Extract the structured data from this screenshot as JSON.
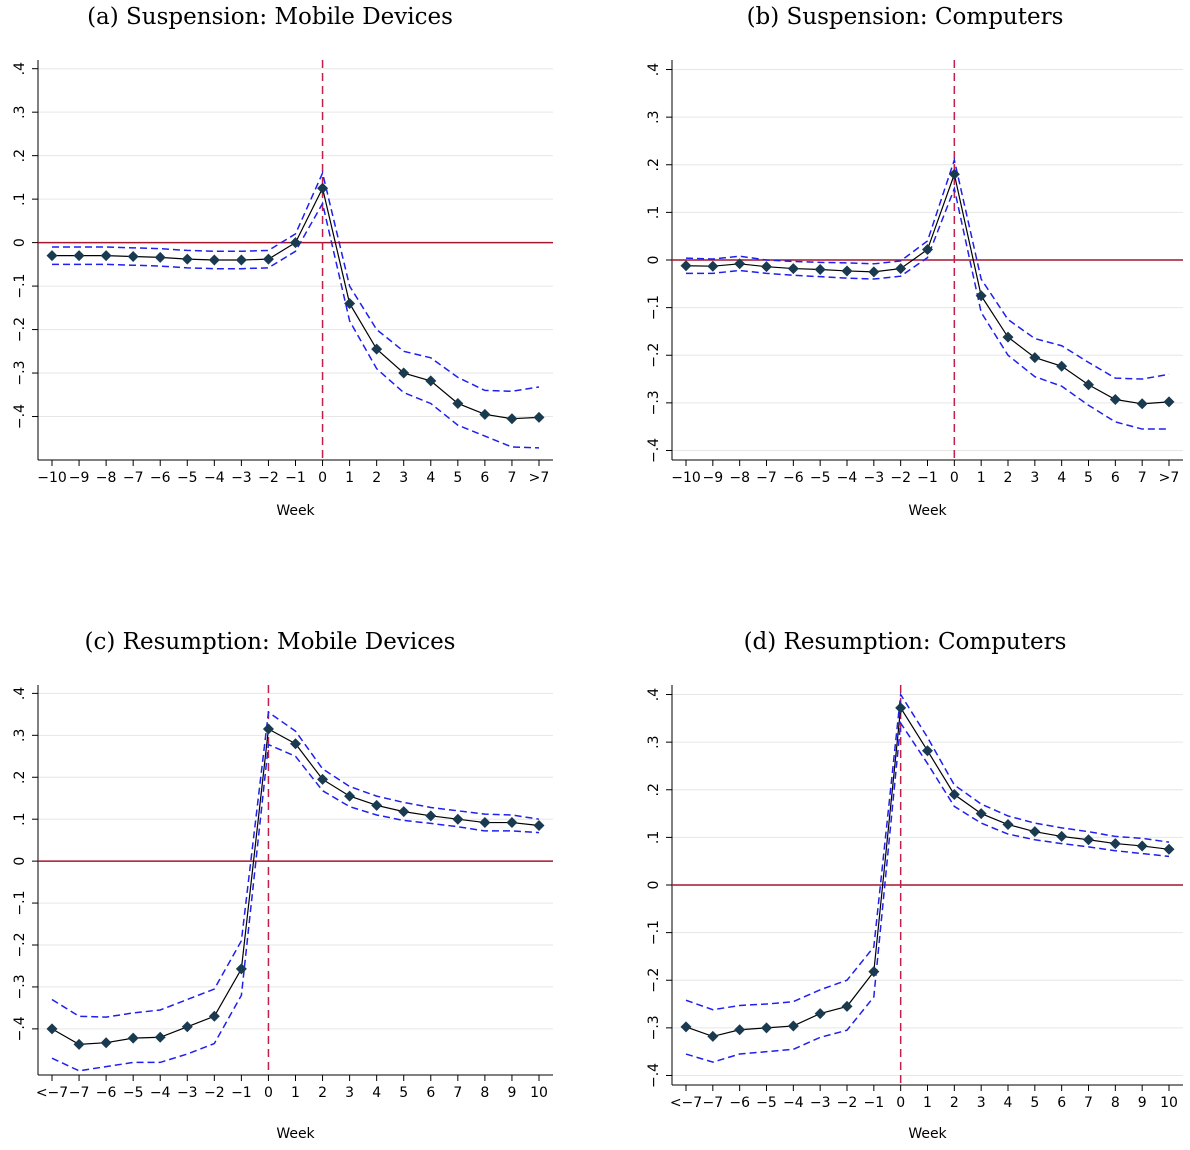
{
  "chart_data": [
    {
      "type": "line",
      "title": "(a) Suspension: Mobile Devices",
      "x_label": "Week",
      "categories": [
        "−10",
        "−9",
        "−8",
        "−7",
        "−6",
        "−5",
        "−4",
        "−3",
        "−2",
        "−1",
        "0",
        "1",
        "2",
        "3",
        "4",
        "5",
        "6",
        "7",
        ">7"
      ],
      "series": [
        {
          "color": "#1f1fef",
          "dashed": true,
          "values": [
            -0.01,
            -0.01,
            -0.01,
            -0.012,
            -0.014,
            -0.018,
            -0.02,
            -0.02,
            -0.018,
            0.02,
            0.16,
            -0.1,
            -0.2,
            -0.25,
            -0.265,
            -0.31,
            -0.34,
            -0.342,
            -0.332
          ]
        },
        {
          "color": "#1f1fef",
          "dashed": true,
          "values": [
            -0.05,
            -0.05,
            -0.05,
            -0.052,
            -0.054,
            -0.058,
            -0.06,
            -0.06,
            -0.058,
            -0.02,
            0.09,
            -0.18,
            -0.29,
            -0.345,
            -0.37,
            -0.42,
            -0.445,
            -0.47,
            -0.472
          ]
        },
        {
          "color": "#000000",
          "marker": "diamond",
          "marker_color": "#1a3a50",
          "values": [
            -0.03,
            -0.03,
            -0.03,
            -0.032,
            -0.034,
            -0.038,
            -0.04,
            -0.04,
            -0.038,
            0.0,
            0.125,
            -0.14,
            -0.245,
            -0.3,
            -0.318,
            -0.37,
            -0.395,
            -0.405,
            -0.402
          ]
        }
      ],
      "ylim": [
        -0.5,
        0.42
      ],
      "yticks": [
        {
          "value": 0.4,
          "label": ".4"
        },
        {
          "value": 0.3,
          "label": ".3"
        },
        {
          "value": 0.2,
          "label": ".2"
        },
        {
          "value": 0.1,
          "label": ".1"
        },
        0,
        {
          "value": -0.1,
          "label": "−.1"
        },
        {
          "value": -0.2,
          "label": "−.2"
        },
        {
          "value": -0.3,
          "label": "−.3"
        },
        {
          "value": -0.4,
          "label": "−.4"
        }
      ],
      "grid": true,
      "hline": 0,
      "hline_color": "#a3172f",
      "vline_category": "0",
      "vline_color": "#c0204a"
    },
    {
      "type": "line",
      "title": "(b) Suspension: Computers",
      "x_label": "Week",
      "categories": [
        "−10",
        "−9",
        "−8",
        "−7",
        "−6",
        "−5",
        "−4",
        "−3",
        "−2",
        "−1",
        "0",
        "1",
        "2",
        "3",
        "4",
        "5",
        "6",
        "7",
        ">7"
      ],
      "series": [
        {
          "color": "#1f1fef",
          "dashed": true,
          "values": [
            0.004,
            0.002,
            0.008,
            0.0,
            -0.003,
            -0.005,
            -0.006,
            -0.008,
            -0.002,
            0.04,
            0.21,
            -0.04,
            -0.125,
            -0.165,
            -0.18,
            -0.215,
            -0.248,
            -0.25,
            -0.24
          ]
        },
        {
          "color": "#1f1fef",
          "dashed": true,
          "values": [
            -0.028,
            -0.028,
            -0.022,
            -0.028,
            -0.032,
            -0.035,
            -0.038,
            -0.04,
            -0.034,
            0.005,
            0.15,
            -0.11,
            -0.2,
            -0.245,
            -0.265,
            -0.305,
            -0.34,
            -0.355,
            -0.355
          ]
        },
        {
          "color": "#000000",
          "marker": "diamond",
          "marker_color": "#1a3a50",
          "values": [
            -0.012,
            -0.013,
            -0.008,
            -0.014,
            -0.018,
            -0.02,
            -0.023,
            -0.025,
            -0.018,
            0.022,
            0.18,
            -0.075,
            -0.162,
            -0.205,
            -0.223,
            -0.262,
            -0.293,
            -0.302,
            -0.298
          ]
        }
      ],
      "ylim": [
        -0.42,
        0.42
      ],
      "yticks": [
        {
          "value": 0.4,
          "label": ".4"
        },
        {
          "value": 0.3,
          "label": ".3"
        },
        {
          "value": 0.2,
          "label": ".2"
        },
        {
          "value": 0.1,
          "label": ".1"
        },
        0,
        {
          "value": -0.1,
          "label": "−.1"
        },
        {
          "value": -0.2,
          "label": "−.2"
        },
        {
          "value": -0.3,
          "label": "−.3"
        },
        {
          "value": -0.4,
          "label": "−.4"
        }
      ],
      "grid": true,
      "hline": 0,
      "hline_color": "#a3172f",
      "vline_category": "0",
      "vline_color": "#c0204a"
    },
    {
      "type": "line",
      "title": "(c) Resumption: Mobile Devices",
      "x_label": "Week",
      "categories": [
        "<−7",
        "−7",
        "−6",
        "−5",
        "−4",
        "−3",
        "−2",
        "−1",
        "0",
        "1",
        "2",
        "3",
        "4",
        "5",
        "6",
        "7",
        "8",
        "9",
        "10"
      ],
      "series": [
        {
          "color": "#1f1fef",
          "dashed": true,
          "values": [
            -0.33,
            -0.37,
            -0.372,
            -0.362,
            -0.355,
            -0.33,
            -0.305,
            -0.19,
            0.355,
            0.31,
            0.22,
            0.178,
            0.155,
            0.14,
            0.128,
            0.12,
            0.112,
            0.11,
            0.1
          ]
        },
        {
          "color": "#1f1fef",
          "dashed": true,
          "values": [
            -0.47,
            -0.5,
            -0.49,
            -0.48,
            -0.48,
            -0.46,
            -0.435,
            -0.32,
            0.278,
            0.25,
            0.168,
            0.13,
            0.11,
            0.097,
            0.09,
            0.082,
            0.072,
            0.072,
            0.068
          ]
        },
        {
          "color": "#000000",
          "marker": "diamond",
          "marker_color": "#1a3a50",
          "values": [
            -0.4,
            -0.437,
            -0.433,
            -0.422,
            -0.42,
            -0.395,
            -0.37,
            -0.257,
            0.315,
            0.28,
            0.195,
            0.155,
            0.133,
            0.118,
            0.108,
            0.1,
            0.092,
            0.092,
            0.085
          ]
        }
      ],
      "ylim": [
        -0.51,
        0.42
      ],
      "yticks": [
        {
          "value": 0.4,
          "label": ".4"
        },
        {
          "value": 0.3,
          "label": ".3"
        },
        {
          "value": 0.2,
          "label": ".2"
        },
        {
          "value": 0.1,
          "label": ".1"
        },
        0,
        {
          "value": -0.1,
          "label": "−.1"
        },
        {
          "value": -0.2,
          "label": "−.2"
        },
        {
          "value": -0.3,
          "label": "−.3"
        },
        {
          "value": -0.4,
          "label": "−.4"
        }
      ],
      "grid": true,
      "hline": 0,
      "hline_color": "#a3172f",
      "vline_category": "0",
      "vline_color": "#c0204a"
    },
    {
      "type": "line",
      "title": "(d) Resumption: Computers",
      "x_label": "Week",
      "categories": [
        "<−7",
        "−7",
        "−6",
        "−5",
        "−4",
        "−3",
        "−2",
        "−1",
        "0",
        "1",
        "2",
        "3",
        "4",
        "5",
        "6",
        "7",
        "8",
        "9",
        "10"
      ],
      "series": [
        {
          "color": "#1f1fef",
          "dashed": true,
          "values": [
            -0.242,
            -0.262,
            -0.253,
            -0.25,
            -0.245,
            -0.22,
            -0.2,
            -0.13,
            0.4,
            0.31,
            0.21,
            0.17,
            0.145,
            0.13,
            0.12,
            0.112,
            0.102,
            0.098,
            0.09
          ]
        },
        {
          "color": "#1f1fef",
          "dashed": true,
          "values": [
            -0.355,
            -0.372,
            -0.355,
            -0.35,
            -0.345,
            -0.32,
            -0.305,
            -0.235,
            0.34,
            0.255,
            0.165,
            0.13,
            0.107,
            0.095,
            0.087,
            0.08,
            0.072,
            0.066,
            0.06
          ]
        },
        {
          "color": "#000000",
          "marker": "diamond",
          "marker_color": "#1a3a50",
          "values": [
            -0.298,
            -0.318,
            -0.304,
            -0.3,
            -0.296,
            -0.27,
            -0.255,
            -0.182,
            0.372,
            0.282,
            0.19,
            0.15,
            0.127,
            0.112,
            0.102,
            0.095,
            0.087,
            0.082,
            0.075
          ]
        }
      ],
      "ylim": [
        -0.42,
        0.42
      ],
      "yticks": [
        {
          "value": 0.4,
          "label": ".4"
        },
        {
          "value": 0.3,
          "label": ".3"
        },
        {
          "value": 0.2,
          "label": ".2"
        },
        {
          "value": 0.1,
          "label": ".1"
        },
        0,
        {
          "value": -0.1,
          "label": "−.1"
        },
        {
          "value": -0.2,
          "label": "−.2"
        },
        {
          "value": -0.3,
          "label": "−.3"
        },
        {
          "value": -0.4,
          "label": "−.4"
        }
      ],
      "grid": true,
      "hline": 0,
      "hline_color": "#a3172f",
      "vline_category": "0",
      "vline_color": "#c0204a"
    }
  ]
}
